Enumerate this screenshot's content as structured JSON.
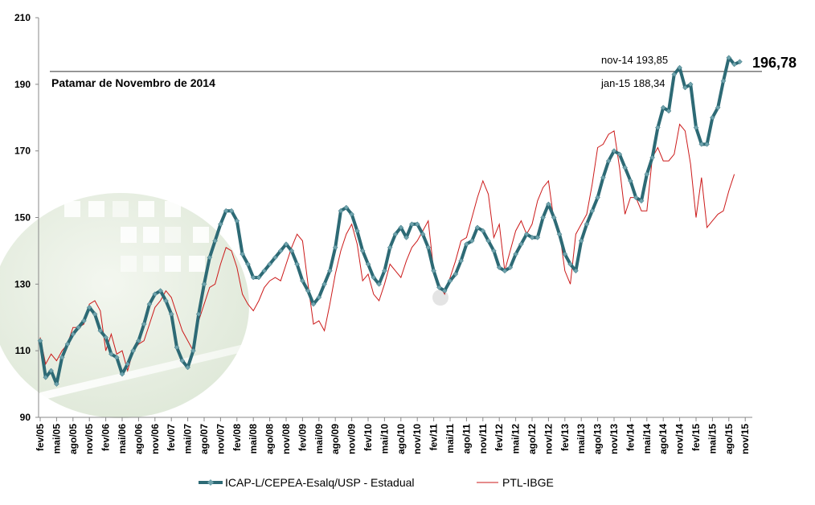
{
  "chart_data": {
    "type": "line",
    "ylim": [
      90,
      210
    ],
    "yticks": [
      90,
      110,
      130,
      150,
      170,
      190,
      210
    ],
    "x_tick_labels": [
      "fev/05",
      "mai/05",
      "ago/05",
      "nov/05",
      "fev/06",
      "mai/06",
      "ago/06",
      "nov/06",
      "fev/07",
      "mai/07",
      "ago/07",
      "nov/07",
      "fev/08",
      "mai/08",
      "ago/08",
      "nov/08",
      "fev/09",
      "mai/09",
      "ago/09",
      "nov/09",
      "fev/10",
      "mai/10",
      "ago/10",
      "nov/10",
      "fev/11",
      "mai/11",
      "ago/11",
      "nov/11",
      "fev/12",
      "mai/12",
      "ago/12",
      "nov/12",
      "fev/13",
      "mai/13",
      "ago/13",
      "nov/13",
      "fev/14",
      "mai/14",
      "ago/14",
      "nov/14",
      "fev/15",
      "mai/15",
      "ago/15",
      "nov/15"
    ],
    "grid": false,
    "legend_position": "bottom",
    "series": [
      {
        "name": "ICAP-L/CEPEA-Esalq/USP - Estadual",
        "color": "#2d6a75",
        "marker": "diamond",
        "values": [
          113,
          102,
          104,
          100,
          108,
          112,
          115,
          117,
          119,
          123,
          121,
          116,
          114,
          109,
          108,
          103,
          106,
          110,
          113,
          118,
          124,
          127,
          128,
          125,
          121,
          111,
          107,
          105,
          110,
          121,
          130,
          138,
          143,
          148,
          152,
          152,
          149,
          139,
          136,
          132,
          132,
          134,
          136,
          138,
          140,
          142,
          140,
          136,
          131,
          128,
          124,
          126,
          130,
          134,
          141,
          152,
          153,
          151,
          146,
          140,
          136,
          132,
          130,
          134,
          141,
          145,
          147,
          144,
          148,
          148,
          145,
          141,
          134,
          129,
          128,
          131,
          133,
          137,
          142,
          143,
          147,
          146,
          143,
          140,
          135,
          134,
          135,
          139,
          142,
          145,
          144,
          144,
          150,
          154,
          150,
          145,
          139,
          136,
          134,
          143,
          148,
          152,
          156,
          162,
          167,
          170,
          169,
          165,
          161,
          156,
          155,
          163,
          168,
          177,
          183,
          182,
          193,
          195,
          189,
          190,
          177,
          172,
          172,
          180,
          183,
          191,
          198,
          196,
          196.78
        ]
      },
      {
        "name": "PTL-IBGE",
        "color": "#cc1a1a",
        "values": [
          114,
          106,
          109,
          107,
          110,
          112,
          117,
          117,
          118,
          124,
          125,
          122,
          110,
          115,
          109,
          110,
          104,
          110,
          112,
          113,
          118,
          123,
          125,
          128,
          126,
          121,
          116,
          113,
          110,
          119,
          124,
          129,
          130,
          136,
          141,
          140,
          135,
          127,
          124,
          122,
          125,
          129,
          131,
          132,
          131,
          136,
          141,
          145,
          143,
          130,
          118,
          119,
          116,
          124,
          133,
          140,
          145,
          148,
          142,
          131,
          133,
          127,
          125,
          130,
          136,
          134,
          132,
          137,
          141,
          143,
          146,
          149,
          134,
          130,
          127,
          132,
          137,
          143,
          144,
          150,
          156,
          161,
          157,
          144,
          148,
          134,
          140,
          146,
          149,
          145,
          148,
          155,
          159,
          161,
          149,
          146,
          134,
          130,
          145,
          148,
          151,
          160,
          171,
          172,
          175,
          176,
          165,
          151,
          156,
          156,
          152,
          152,
          168,
          171,
          167,
          167,
          169,
          178,
          176,
          166,
          150,
          162,
          147,
          149,
          151,
          152,
          158,
          163
        ]
      }
    ],
    "reference_line": {
      "value": 193.85
    },
    "annotations": [
      {
        "text": "Patamar de Novembro de 2014"
      },
      {
        "text": "nov-14 193,85"
      },
      {
        "text": "jan-15 188,34"
      },
      {
        "text": "196,78",
        "color": "#1f7ec2"
      }
    ]
  }
}
